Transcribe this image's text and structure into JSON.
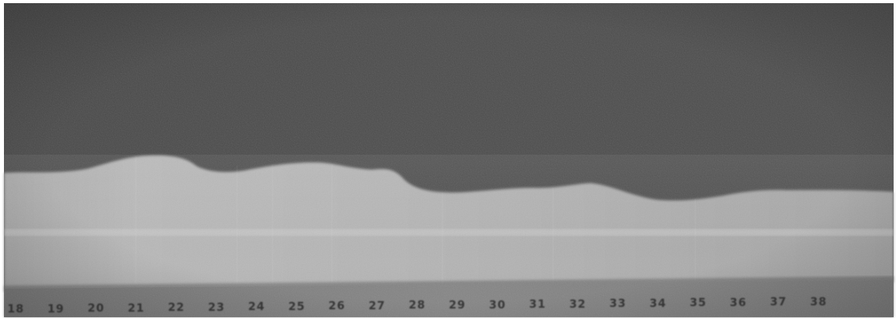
{
  "image": {
    "kind": "grayscale-photograph",
    "colors": {
      "upper_region": "#4a4a4a",
      "lower_region": "#b4b4b4",
      "scale_strip": "#7e7e7e",
      "numerals": "#222222"
    }
  },
  "scale": {
    "numbers": [
      "18",
      "19",
      "20",
      "21",
      "22",
      "23",
      "24",
      "25",
      "26",
      "27",
      "28",
      "29",
      "30",
      "31",
      "32",
      "33",
      "34",
      "35",
      "36",
      "37",
      "38"
    ]
  }
}
